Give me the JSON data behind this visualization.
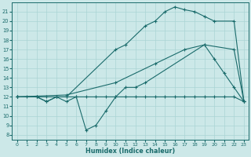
{
  "background_color": "#cce8e8",
  "grid_color": "#aad4d4",
  "line_color": "#1a6b6b",
  "xlabel": "Humidex (Indice chaleur)",
  "xlim": [
    -0.5,
    23.5
  ],
  "ylim": [
    7.5,
    22.0
  ],
  "xticks": [
    0,
    1,
    2,
    3,
    4,
    5,
    6,
    7,
    8,
    9,
    10,
    11,
    12,
    13,
    14,
    15,
    16,
    17,
    18,
    19,
    20,
    21,
    22,
    23
  ],
  "yticks": [
    8,
    9,
    10,
    11,
    12,
    13,
    14,
    15,
    16,
    17,
    18,
    19,
    20,
    21
  ],
  "series": [
    {
      "x": [
        0,
        1,
        2,
        3,
        4,
        5,
        6,
        7,
        8,
        9,
        10,
        11,
        12,
        13,
        14,
        15,
        16,
        17,
        18,
        19,
        20,
        21,
        22,
        23
      ],
      "y": [
        12,
        12,
        12,
        12,
        12,
        12,
        12,
        12,
        12,
        12,
        12,
        12,
        12,
        12,
        12,
        12,
        12,
        12,
        12,
        12,
        12,
        12,
        12,
        11.5
      ]
    },
    {
      "x": [
        0,
        2,
        3,
        4,
        5,
        6,
        7,
        8,
        9,
        10,
        11,
        12,
        13,
        19,
        22,
        23
      ],
      "y": [
        12,
        12,
        11.5,
        12,
        11.5,
        12,
        8.5,
        9.0,
        10.5,
        12.0,
        13.0,
        13.0,
        13.5,
        17.5,
        17.0,
        11.5
      ]
    },
    {
      "x": [
        0,
        5,
        10,
        14,
        17,
        19,
        20,
        21,
        22,
        23
      ],
      "y": [
        12,
        12.2,
        13.5,
        15.5,
        17.0,
        17.5,
        16.0,
        14.5,
        13.0,
        11.5
      ]
    },
    {
      "x": [
        0,
        2,
        3,
        4,
        5,
        10,
        11,
        13,
        14,
        15,
        16,
        17,
        18,
        19,
        20,
        22,
        23
      ],
      "y": [
        12,
        12,
        11.5,
        12,
        12,
        17.0,
        17.5,
        19.5,
        20.0,
        21.0,
        21.5,
        21.2,
        21.0,
        20.5,
        20.0,
        20.0,
        11.5
      ]
    }
  ]
}
